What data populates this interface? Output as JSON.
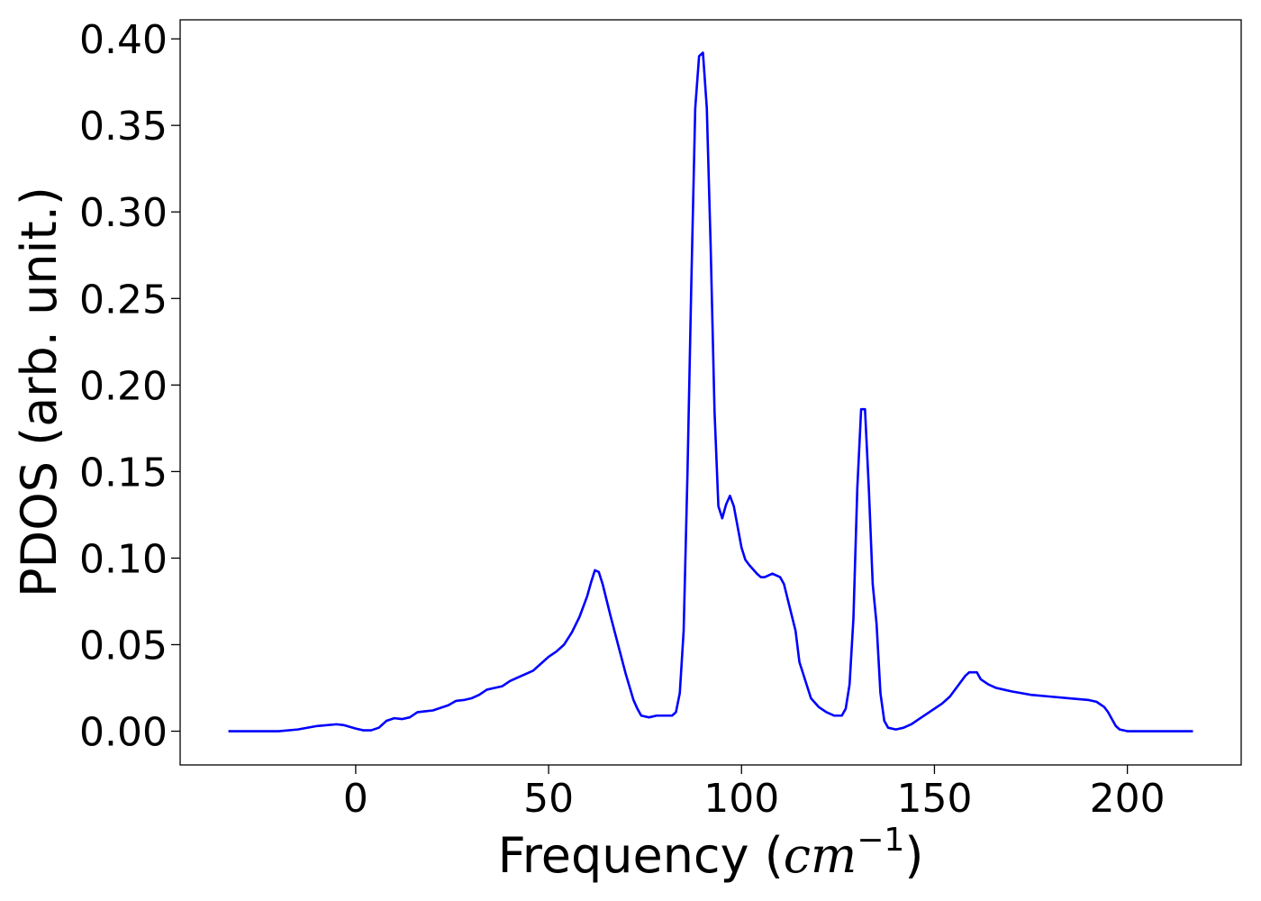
{
  "chart_data": {
    "type": "line",
    "x_label_parts": [
      "Frequency (",
      "cm",
      "−1",
      ")"
    ],
    "y_label": "PDOS (arb. unit.)",
    "x": [
      -33,
      -20,
      -15,
      -10,
      -5,
      -3,
      0,
      2,
      4,
      6,
      8,
      10,
      12,
      14,
      16,
      18,
      20,
      22,
      24,
      26,
      28,
      30,
      32,
      34,
      36,
      38,
      40,
      42,
      44,
      46,
      48,
      50,
      52,
      54,
      56,
      58,
      60,
      61,
      62,
      63,
      64,
      66,
      68,
      70,
      72,
      73,
      74,
      76,
      78,
      80,
      82,
      83,
      84,
      85,
      86,
      87,
      88,
      89,
      90,
      91,
      92,
      93,
      94,
      95,
      96,
      97,
      98,
      99,
      100,
      101,
      102,
      104,
      105,
      106,
      108,
      110,
      111,
      112,
      114,
      115,
      117,
      118,
      120,
      122,
      124,
      126,
      127,
      128,
      129,
      130,
      131,
      132,
      133,
      134,
      135,
      136,
      137,
      138,
      140,
      142,
      144,
      146,
      148,
      150,
      152,
      154,
      156,
      158,
      159,
      160,
      161,
      162,
      164,
      166,
      168,
      170,
      175,
      180,
      185,
      190,
      192,
      194,
      195,
      196,
      197,
      198,
      200,
      205,
      217
    ],
    "series": [
      {
        "color": "#0000ff",
        "values": [
          0,
          0,
          0.001,
          0.003,
          0.004,
          0.0035,
          0.0015,
          0.0005,
          0.0005,
          0.002,
          0.006,
          0.0075,
          0.007,
          0.008,
          0.011,
          0.0115,
          0.012,
          0.0135,
          0.015,
          0.0175,
          0.018,
          0.019,
          0.021,
          0.024,
          0.025,
          0.026,
          0.029,
          0.031,
          0.033,
          0.035,
          0.039,
          0.043,
          0.046,
          0.05,
          0.057,
          0.066,
          0.078,
          0.086,
          0.093,
          0.092,
          0.085,
          0.067,
          0.05,
          0.033,
          0.018,
          0.013,
          0.009,
          0.008,
          0.009,
          0.009,
          0.009,
          0.011,
          0.022,
          0.058,
          0.15,
          0.26,
          0.36,
          0.39,
          0.392,
          0.36,
          0.28,
          0.185,
          0.13,
          0.123,
          0.131,
          0.136,
          0.13,
          0.118,
          0.106,
          0.099,
          0.096,
          0.091,
          0.089,
          0.089,
          0.091,
          0.089,
          0.085,
          0.076,
          0.058,
          0.04,
          0.026,
          0.019,
          0.014,
          0.011,
          0.009,
          0.009,
          0.013,
          0.027,
          0.065,
          0.14,
          0.186,
          0.186,
          0.14,
          0.085,
          0.062,
          0.022,
          0.006,
          0.002,
          0.001,
          0.002,
          0.004,
          0.007,
          0.01,
          0.013,
          0.016,
          0.02,
          0.026,
          0.032,
          0.034,
          0.034,
          0.034,
          0.03,
          0.027,
          0.025,
          0.024,
          0.023,
          0.021,
          0.02,
          0.019,
          0.018,
          0.017,
          0.014,
          0.011,
          0.007,
          0.003,
          0.001,
          0,
          0,
          0
        ]
      }
    ],
    "xlim": [
      -45.5,
      229.5
    ],
    "xticks": [
      0,
      50,
      100,
      150,
      200
    ],
    "ylim": [
      -0.0195,
      0.411
    ],
    "yticks": [
      {
        "value": 0,
        "label": "0.00"
      },
      {
        "value": 0.05,
        "label": "0.05"
      },
      {
        "value": 0.1,
        "label": "0.10"
      },
      {
        "value": 0.15,
        "label": "0.15"
      },
      {
        "value": 0.2,
        "label": "0.20"
      },
      {
        "value": 0.25,
        "label": "0.25"
      },
      {
        "value": 0.3,
        "label": "0.30"
      },
      {
        "value": 0.35,
        "label": "0.35"
      },
      {
        "value": 0.4,
        "label": "0.40"
      }
    ],
    "grid": false
  }
}
